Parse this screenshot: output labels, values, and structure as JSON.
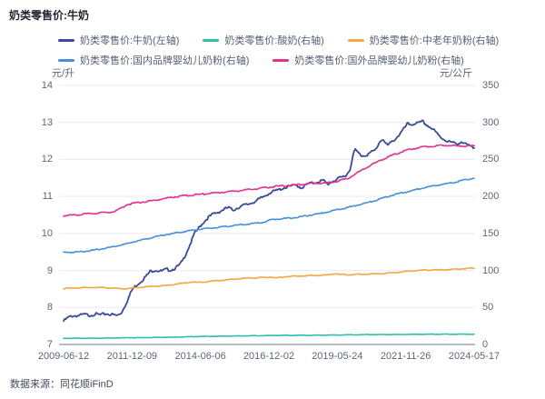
{
  "title": "奶类零售价:牛奶",
  "source_note": "数据来源：同花顺iFinD",
  "axes": {
    "left_unit": "元/升",
    "right_unit": "元/公斤",
    "left_ticks": [
      14,
      13,
      12,
      11,
      10,
      9,
      8,
      7
    ],
    "right_ticks": [
      350,
      300,
      250,
      200,
      150,
      100,
      50,
      0
    ],
    "x_ticks": [
      "2009-06-12",
      "2011-12-09",
      "2014-06-06",
      "2016-12-02",
      "2019-05-24",
      "2021-11-26",
      "2024-05-17"
    ]
  },
  "legend_rows": [
    [
      0,
      1,
      2
    ],
    [
      3,
      4
    ]
  ],
  "chart_data": {
    "type": "line",
    "title": "奶类零售价:牛奶",
    "x_range": [
      "2009-06-12",
      "2024-05-17"
    ],
    "left_axis": {
      "label": "元/升",
      "min": 7,
      "max": 14
    },
    "right_axis": {
      "label": "元/公斤",
      "min": 0,
      "max": 350
    },
    "grid": true,
    "legend_position": "top",
    "series": [
      {
        "id": "milk",
        "name": "奶类零售价:牛奶(左轴)",
        "axis": "left",
        "color": "#3A4B97",
        "noise": 0.02,
        "unit": "元/升",
        "points": [
          [
            0,
            7.65
          ],
          [
            0.01,
            7.74
          ],
          [
            0.02,
            7.79
          ],
          [
            0.037,
            7.8
          ],
          [
            0.05,
            7.83
          ],
          [
            0.064,
            7.81
          ],
          [
            0.077,
            7.84
          ],
          [
            0.09,
            7.82
          ],
          [
            0.104,
            7.85
          ],
          [
            0.117,
            7.83
          ],
          [
            0.131,
            7.8
          ],
          [
            0.141,
            7.88
          ],
          [
            0.151,
            8.1
          ],
          [
            0.161,
            8.35
          ],
          [
            0.167,
            8.5
          ],
          [
            0.177,
            8.62
          ],
          [
            0.191,
            8.75
          ],
          [
            0.204,
            8.9
          ],
          [
            0.211,
            9.0
          ],
          [
            0.224,
            9.03
          ],
          [
            0.238,
            9.0
          ],
          [
            0.251,
            9.05
          ],
          [
            0.261,
            9.03
          ],
          [
            0.271,
            9.08
          ],
          [
            0.281,
            9.15
          ],
          [
            0.291,
            9.3
          ],
          [
            0.301,
            9.55
          ],
          [
            0.311,
            9.8
          ],
          [
            0.318,
            10.0
          ],
          [
            0.335,
            10.25
          ],
          [
            0.352,
            10.45
          ],
          [
            0.365,
            10.55
          ],
          [
            0.378,
            10.6
          ],
          [
            0.392,
            10.68
          ],
          [
            0.402,
            10.72
          ],
          [
            0.412,
            10.65
          ],
          [
            0.425,
            10.72
          ],
          [
            0.439,
            10.78
          ],
          [
            0.452,
            10.82
          ],
          [
            0.469,
            10.9
          ],
          [
            0.485,
            11.0
          ],
          [
            0.502,
            11.12
          ],
          [
            0.519,
            11.18
          ],
          [
            0.536,
            11.25
          ],
          [
            0.553,
            11.3
          ],
          [
            0.569,
            11.32
          ],
          [
            0.579,
            11.25
          ],
          [
            0.593,
            11.35
          ],
          [
            0.606,
            11.38
          ],
          [
            0.62,
            11.42
          ],
          [
            0.633,
            11.45
          ],
          [
            0.643,
            11.35
          ],
          [
            0.653,
            11.42
          ],
          [
            0.666,
            11.48
          ],
          [
            0.68,
            11.55
          ],
          [
            0.69,
            11.62
          ],
          [
            0.697,
            11.72
          ],
          [
            0.703,
            12.05
          ],
          [
            0.71,
            12.3
          ],
          [
            0.717,
            12.2
          ],
          [
            0.727,
            12.12
          ],
          [
            0.74,
            12.15
          ],
          [
            0.75,
            12.22
          ],
          [
            0.76,
            12.28
          ],
          [
            0.77,
            12.5
          ],
          [
            0.777,
            12.58
          ],
          [
            0.784,
            12.45
          ],
          [
            0.79,
            12.4
          ],
          [
            0.8,
            12.5
          ],
          [
            0.81,
            12.6
          ],
          [
            0.82,
            12.72
          ],
          [
            0.831,
            12.88
          ],
          [
            0.837,
            12.98
          ],
          [
            0.847,
            12.96
          ],
          [
            0.857,
            13.0
          ],
          [
            0.867,
            13.0
          ],
          [
            0.874,
            13.05
          ],
          [
            0.881,
            12.98
          ],
          [
            0.891,
            12.9
          ],
          [
            0.901,
            12.82
          ],
          [
            0.911,
            12.7
          ],
          [
            0.921,
            12.6
          ],
          [
            0.934,
            12.52
          ],
          [
            0.948,
            12.47
          ],
          [
            0.958,
            12.44
          ],
          [
            0.968,
            12.5
          ],
          [
            0.974,
            12.46
          ],
          [
            0.984,
            12.4
          ],
          [
            0.994,
            12.36
          ],
          [
            1.0,
            12.33
          ]
        ]
      },
      {
        "id": "yogurt",
        "name": "奶类零售价:酸奶(右轴)",
        "axis": "right",
        "color": "#2FBFB0",
        "noise": 0.003,
        "unit": "元/公斤",
        "points": [
          [
            0,
            8.5
          ],
          [
            0.07,
            8.5
          ],
          [
            0.137,
            9
          ],
          [
            0.204,
            9.5
          ],
          [
            0.271,
            10
          ],
          [
            0.338,
            11
          ],
          [
            0.405,
            11.5
          ],
          [
            0.472,
            12
          ],
          [
            0.539,
            12.5
          ],
          [
            0.606,
            12.5
          ],
          [
            0.673,
            13
          ],
          [
            0.74,
            13.5
          ],
          [
            0.807,
            13.5
          ],
          [
            0.874,
            14
          ],
          [
            0.941,
            14
          ],
          [
            1.0,
            14
          ]
        ]
      },
      {
        "id": "senior-milk-powder",
        "name": "奶类零售价:中老年奶粉(右轴)",
        "axis": "right",
        "color": "#F6A543",
        "noise": 0.006,
        "unit": "元/公斤",
        "points": [
          [
            0,
            76
          ],
          [
            0.023,
            76.5
          ],
          [
            0.05,
            77
          ],
          [
            0.077,
            77.5
          ],
          [
            0.104,
            77
          ],
          [
            0.131,
            76
          ],
          [
            0.151,
            75.5
          ],
          [
            0.171,
            76.5
          ],
          [
            0.198,
            78
          ],
          [
            0.224,
            79
          ],
          [
            0.251,
            80
          ],
          [
            0.271,
            81.5
          ],
          [
            0.291,
            83
          ],
          [
            0.311,
            85
          ],
          [
            0.325,
            84
          ],
          [
            0.345,
            85
          ],
          [
            0.372,
            86.5
          ],
          [
            0.399,
            87.5
          ],
          [
            0.425,
            89
          ],
          [
            0.452,
            90
          ],
          [
            0.479,
            90.5
          ],
          [
            0.505,
            91.5
          ],
          [
            0.519,
            90
          ],
          [
            0.539,
            92
          ],
          [
            0.559,
            92.5
          ],
          [
            0.586,
            93
          ],
          [
            0.613,
            93.5
          ],
          [
            0.64,
            94
          ],
          [
            0.66,
            96
          ],
          [
            0.673,
            95
          ],
          [
            0.693,
            94.5
          ],
          [
            0.72,
            95
          ],
          [
            0.747,
            95.5
          ],
          [
            0.774,
            96
          ],
          [
            0.8,
            97
          ],
          [
            0.827,
            98.5
          ],
          [
            0.854,
            100
          ],
          [
            0.881,
            101
          ],
          [
            0.908,
            101
          ],
          [
            0.934,
            101.5
          ],
          [
            0.961,
            102
          ],
          [
            0.981,
            103
          ],
          [
            1.0,
            103.5
          ]
        ]
      },
      {
        "id": "domestic-infant-formula",
        "name": "奶类零售价:国内品牌婴幼儿奶粉(右轴)",
        "axis": "right",
        "color": "#4590D8",
        "noise": 0.008,
        "unit": "元/公斤",
        "points": [
          [
            0,
            125
          ],
          [
            0.023,
            125
          ],
          [
            0.044,
            126
          ],
          [
            0.07,
            127.5
          ],
          [
            0.097,
            130
          ],
          [
            0.124,
            133
          ],
          [
            0.151,
            136
          ],
          [
            0.171,
            139
          ],
          [
            0.198,
            142.5
          ],
          [
            0.224,
            146
          ],
          [
            0.251,
            149
          ],
          [
            0.278,
            151.5
          ],
          [
            0.305,
            154
          ],
          [
            0.331,
            156
          ],
          [
            0.358,
            157.5
          ],
          [
            0.385,
            159
          ],
          [
            0.412,
            161
          ],
          [
            0.439,
            162.5
          ],
          [
            0.465,
            164
          ],
          [
            0.492,
            166
          ],
          [
            0.505,
            169
          ],
          [
            0.525,
            170
          ],
          [
            0.546,
            171
          ],
          [
            0.572,
            172.5
          ],
          [
            0.599,
            175
          ],
          [
            0.626,
            177.5
          ],
          [
            0.653,
            181
          ],
          [
            0.68,
            184
          ],
          [
            0.707,
            187.5
          ],
          [
            0.733,
            191
          ],
          [
            0.76,
            195
          ],
          [
            0.787,
            200
          ],
          [
            0.814,
            204
          ],
          [
            0.841,
            207
          ],
          [
            0.868,
            211
          ],
          [
            0.894,
            214
          ],
          [
            0.921,
            216.5
          ],
          [
            0.948,
            219
          ],
          [
            0.974,
            222.5
          ],
          [
            1.0,
            225
          ]
        ]
      },
      {
        "id": "foreign-infant-formula",
        "name": "奶类零售价:国外品牌婴幼儿奶粉(右轴)",
        "axis": "right",
        "color": "#E2328D",
        "noise": 0.011,
        "unit": "元/公斤",
        "points": [
          [
            0,
            174.5
          ],
          [
            0.037,
            176
          ],
          [
            0.07,
            177.5
          ],
          [
            0.104,
            179
          ],
          [
            0.124,
            180
          ],
          [
            0.137,
            184
          ],
          [
            0.157,
            190
          ],
          [
            0.184,
            192.5
          ],
          [
            0.218,
            195
          ],
          [
            0.244,
            197.5
          ],
          [
            0.271,
            200
          ],
          [
            0.305,
            202
          ],
          [
            0.352,
            204.5
          ],
          [
            0.392,
            206.5
          ],
          [
            0.439,
            209
          ],
          [
            0.472,
            211
          ],
          [
            0.506,
            213.5
          ],
          [
            0.539,
            215
          ],
          [
            0.573,
            216.5
          ],
          [
            0.606,
            218
          ],
          [
            0.64,
            219
          ],
          [
            0.666,
            221
          ],
          [
            0.693,
            225
          ],
          [
            0.72,
            234
          ],
          [
            0.747,
            242.5
          ],
          [
            0.774,
            250
          ],
          [
            0.807,
            257.5
          ],
          [
            0.841,
            264
          ],
          [
            0.874,
            267.5
          ],
          [
            0.908,
            269
          ],
          [
            0.941,
            270
          ],
          [
            0.961,
            268.5
          ],
          [
            0.981,
            269
          ],
          [
            1.0,
            268.5
          ]
        ]
      }
    ]
  },
  "colors": {
    "grid": "#E9EBF3",
    "axis_line": "#B7BCC8",
    "label_text": "#5E6576",
    "legend_text": "#555E6E",
    "title_text": "#1F242E",
    "source_text": "#434A5B"
  }
}
